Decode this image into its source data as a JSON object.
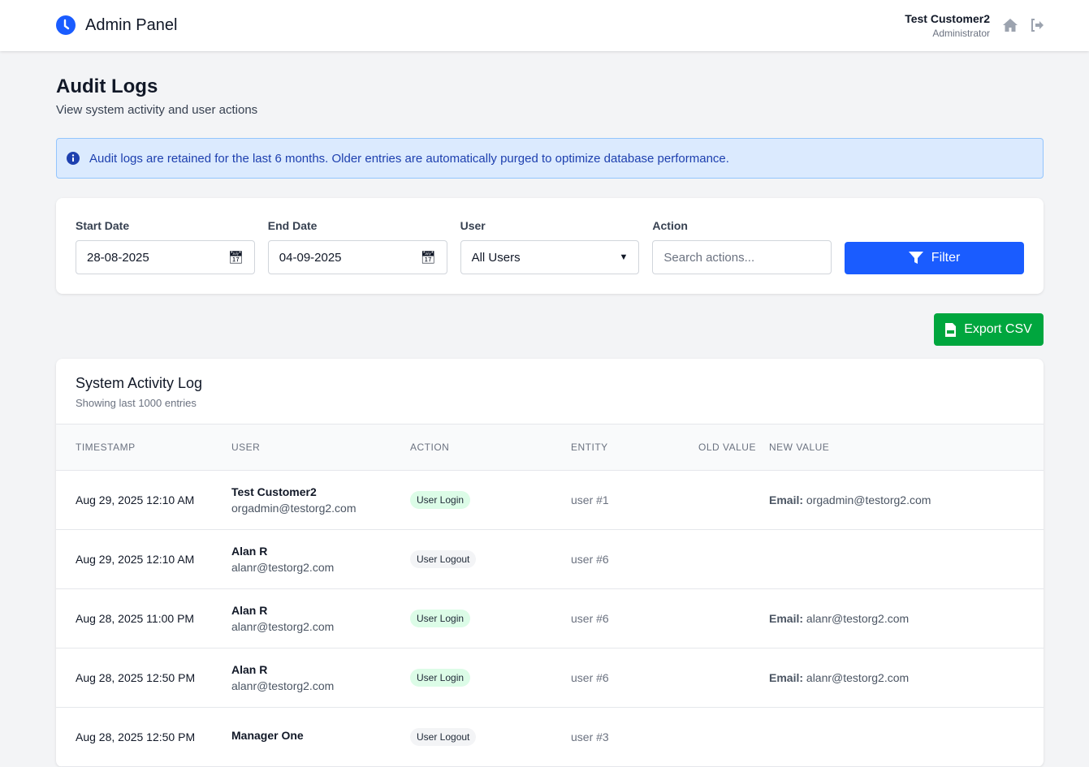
{
  "header": {
    "app_title": "Admin Panel",
    "user_name": "Test Customer2",
    "user_role": "Administrator"
  },
  "page": {
    "title": "Audit Logs",
    "subtitle": "View system activity and user actions"
  },
  "alert": {
    "text": "Audit logs are retained for the last 6 months. Older entries are automatically purged to optimize database performance."
  },
  "filters": {
    "start_label": "Start Date",
    "start_value": "28-08-2025",
    "end_label": "End Date",
    "end_value": "04-09-2025",
    "user_label": "User",
    "user_value": "All Users",
    "action_label": "Action",
    "action_placeholder": "Search actions...",
    "filter_label": "Filter"
  },
  "export_label": "Export CSV",
  "log": {
    "title": "System Activity Log",
    "subtitle": "Showing last 1000 entries",
    "columns": [
      "Timestamp",
      "User",
      "Action",
      "Entity",
      "Old Value",
      "New Value"
    ],
    "rows": [
      {
        "timestamp": "Aug 29, 2025 12:10 AM",
        "name": "Test Customer2",
        "email": "orgadmin@testorg2.com",
        "action": "User Login",
        "action_type": "login",
        "entity": "user #1",
        "old": "",
        "new_key": "Email:",
        "new_val": "orgadmin@testorg2.com"
      },
      {
        "timestamp": "Aug 29, 2025 12:10 AM",
        "name": "Alan R",
        "email": "alanr@testorg2.com",
        "action": "User Logout",
        "action_type": "logout",
        "entity": "user #6",
        "old": "",
        "new_key": "",
        "new_val": ""
      },
      {
        "timestamp": "Aug 28, 2025 11:00 PM",
        "name": "Alan R",
        "email": "alanr@testorg2.com",
        "action": "User Login",
        "action_type": "login",
        "entity": "user #6",
        "old": "",
        "new_key": "Email:",
        "new_val": "alanr@testorg2.com"
      },
      {
        "timestamp": "Aug 28, 2025 12:50 PM",
        "name": "Alan R",
        "email": "alanr@testorg2.com",
        "action": "User Login",
        "action_type": "login",
        "entity": "user #6",
        "old": "",
        "new_key": "Email:",
        "new_val": "alanr@testorg2.com"
      },
      {
        "timestamp": "Aug 28, 2025 12:50 PM",
        "name": "Manager One",
        "email": "",
        "action": "User Logout",
        "action_type": "logout",
        "entity": "user #3",
        "old": "",
        "new_key": "",
        "new_val": ""
      }
    ]
  },
  "colors": {
    "primary": "#1a5cff",
    "success": "#00a63e",
    "login_badge": "#dcfce7",
    "logout_badge": "#f3f4f6"
  }
}
